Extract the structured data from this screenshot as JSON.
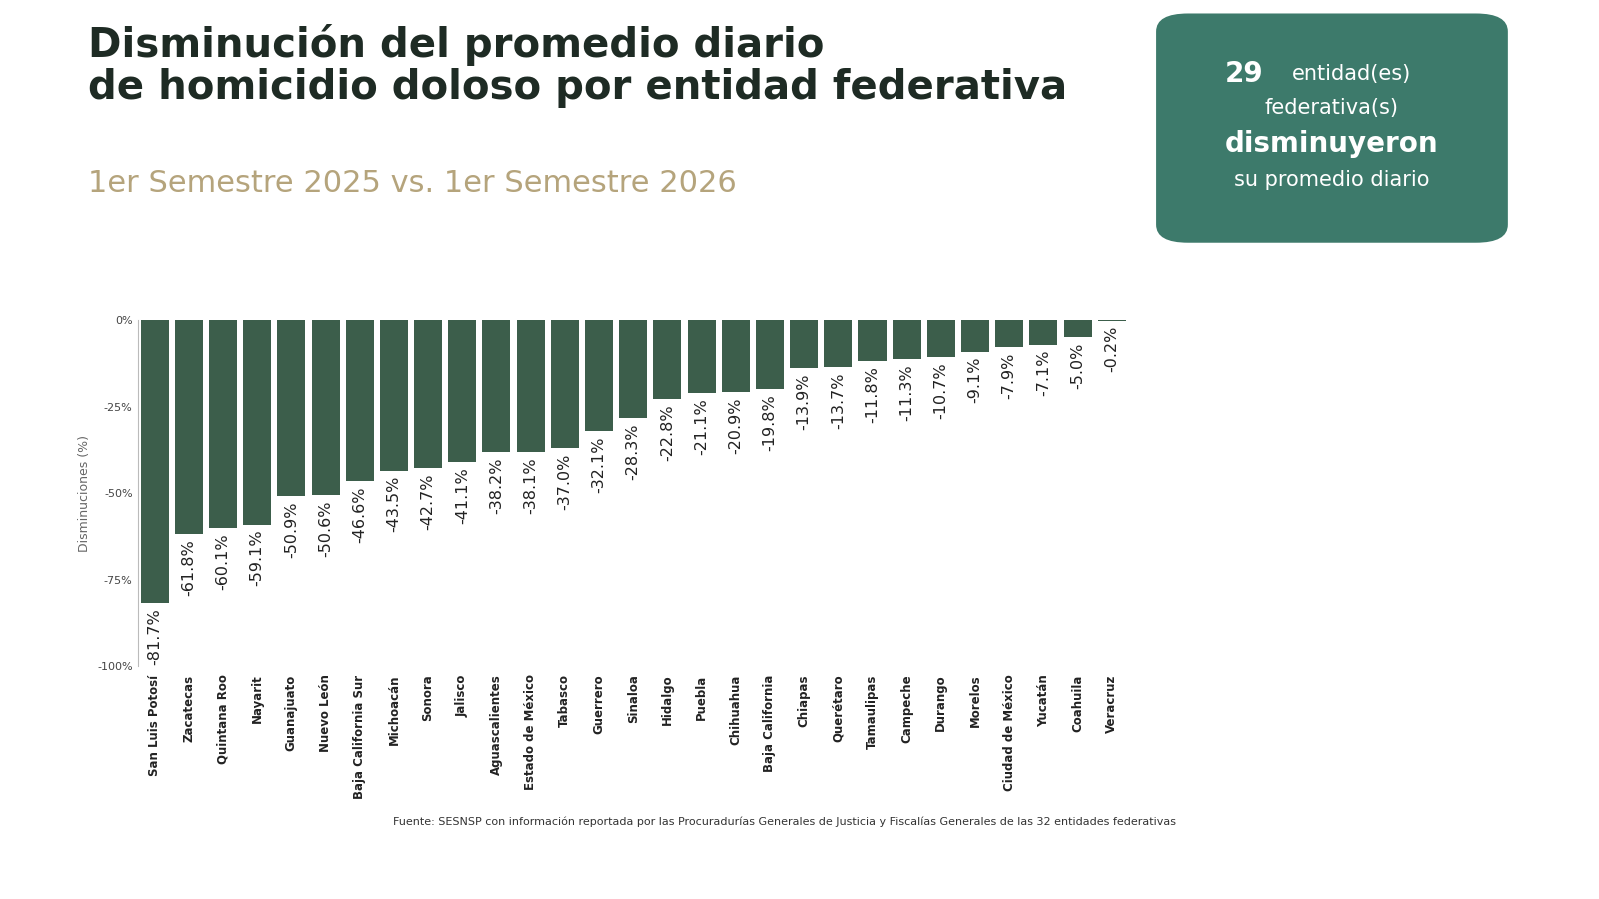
{
  "chart_data": {
    "type": "bar",
    "title": "Disminución del promedio diario\nde homicidio doloso por entidad federativa",
    "subtitle": "1er Semestre 2025 vs. 1er Semestre 2026",
    "y_label": "Disminuciones (%)",
    "categories": [
      "San Luis Potosí",
      "Zacatecas",
      "Quintana Roo",
      "Nayarit",
      "Guanajuato",
      "Nuevo León",
      "Baja California Sur",
      "Michoacán",
      "Sonora",
      "Jalisco",
      "Aguascalientes",
      "Estado de México",
      "Tabasco",
      "Guerrero",
      "Sinaloa",
      "Hidalgo",
      "Puebla",
      "Chihuahua",
      "Baja California",
      "Chiapas",
      "Querétaro",
      "Tamaulipas",
      "Campeche",
      "Durango",
      "Morelos",
      "Ciudad de México",
      "Yucatán",
      "Coahuila",
      "Veracruz"
    ],
    "values": [
      -81.7,
      -61.8,
      -60.1,
      -59.1,
      -50.9,
      -50.6,
      -46.6,
      -43.5,
      -42.7,
      -41.1,
      -38.2,
      -38.1,
      -37.0,
      -32.1,
      -28.3,
      -22.8,
      -21.1,
      -20.9,
      -19.8,
      -13.9,
      -13.7,
      -11.8,
      -11.3,
      -10.7,
      -9.1,
      -7.9,
      -7.1,
      -5.0,
      -0.2
    ],
    "value_labels": [
      "-81.7%",
      "-61.8%",
      "-60.1%",
      "-59.1%",
      "-50.9%",
      "-50.6%",
      "-46.6%",
      "-43.5%",
      "-42.7%",
      "-41.1%",
      "-38.2%",
      "-38.1%",
      "-37.0%",
      "-32.1%",
      "-28.3%",
      "-22.8%",
      "-21.1%",
      "-20.9%",
      "-19.8%",
      "-13.9%",
      "-13.7%",
      "-11.8%",
      "-11.3%",
      "-10.7%",
      "-9.1%",
      "-7.9%",
      "-7.1%",
      "-5.0%",
      "-0.2%"
    ],
    "color": "#3c5e4b",
    "ylim": [
      -100,
      0
    ],
    "yticks": [
      {
        "value": 0,
        "label": "0%"
      },
      {
        "value": -25,
        "label": "-25%"
      },
      {
        "value": -50,
        "label": "-50%"
      },
      {
        "value": -75,
        "label": "-75%"
      },
      {
        "value": -100,
        "label": "-100%"
      }
    ],
    "grid": false,
    "data_labels": true,
    "callout": {
      "value": 29,
      "lines": [
        "entidad(es)",
        "federativa(s)",
        "disminuyeron",
        "su promedio diario"
      ]
    },
    "source": "Fuente: SESNSP con información reportada por las Procuradurías Generales de Justicia y Fiscalías Generales de las 32 entidades federativas"
  }
}
